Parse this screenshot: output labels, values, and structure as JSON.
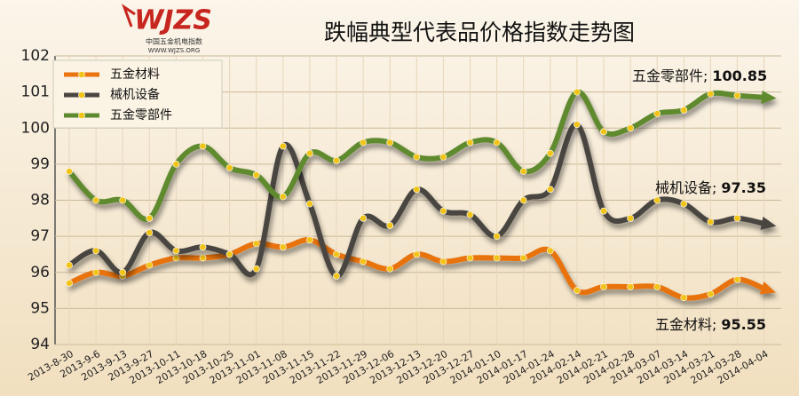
{
  "chart_data": {
    "type": "line",
    "title": "跌幅典型代表品价格指数走势图",
    "logo": {
      "brand": "WJZS",
      "name": "中国五金机电指数",
      "site": "WWW.WJZS.ORG"
    },
    "categories": [
      "2013-8-30",
      "2013-9-6",
      "2013-9-13",
      "2013-9-27",
      "2013-10-11",
      "2013-10-18",
      "2013-10-25",
      "2013-11-01",
      "2013-11-08",
      "2013-11-15",
      "2013-11-22",
      "2013-11-29",
      "2013-12-06",
      "2013-12-13",
      "2013-12-20",
      "2013-12-27",
      "2014-01-10",
      "2014-01-17",
      "2014-01-24",
      "2014-02-14",
      "2014-02-21",
      "2014-02-28",
      "2014-03-07",
      "2014-03-14",
      "2014-03-21",
      "2014-03-28",
      "2014-04-04"
    ],
    "series": [
      {
        "name": "五金材料",
        "color": "#e8730f",
        "values": [
          95.7,
          96.0,
          95.9,
          96.2,
          96.4,
          96.4,
          96.5,
          96.8,
          96.7,
          96.9,
          96.5,
          96.3,
          96.1,
          96.5,
          96.3,
          96.4,
          96.4,
          96.4,
          96.6,
          95.5,
          95.6,
          95.6,
          95.6,
          95.3,
          95.4,
          95.8,
          95.55
        ]
      },
      {
        "name": "械机设备",
        "color": "#4a4540",
        "values": [
          96.2,
          96.6,
          96.0,
          97.1,
          96.6,
          96.7,
          96.5,
          96.1,
          99.5,
          97.9,
          95.9,
          97.5,
          97.3,
          98.3,
          97.7,
          97.6,
          97.0,
          98.0,
          98.3,
          100.1,
          97.7,
          97.5,
          98.0,
          97.9,
          97.4,
          97.5,
          97.35
        ]
      },
      {
        "name": "五金零部件",
        "color": "#5e8a2e",
        "values": [
          98.8,
          98.0,
          98.0,
          97.5,
          99.0,
          99.5,
          98.9,
          98.7,
          98.1,
          99.3,
          99.1,
          99.6,
          99.6,
          99.2,
          99.2,
          99.6,
          99.6,
          98.8,
          99.3,
          101.0,
          99.9,
          100.0,
          100.4,
          100.5,
          100.95,
          100.9,
          100.85
        ]
      }
    ],
    "annotations": [
      {
        "label": "五金零部件;",
        "series": 2
      },
      {
        "label": "械机设备;",
        "series": 1
      },
      {
        "label": "五金材料;",
        "series": 0
      }
    ],
    "ylim": [
      94,
      102
    ],
    "yticks": [
      94,
      95,
      96,
      97,
      98,
      99,
      100,
      101,
      102
    ],
    "grid": true,
    "legend": "upper left"
  }
}
